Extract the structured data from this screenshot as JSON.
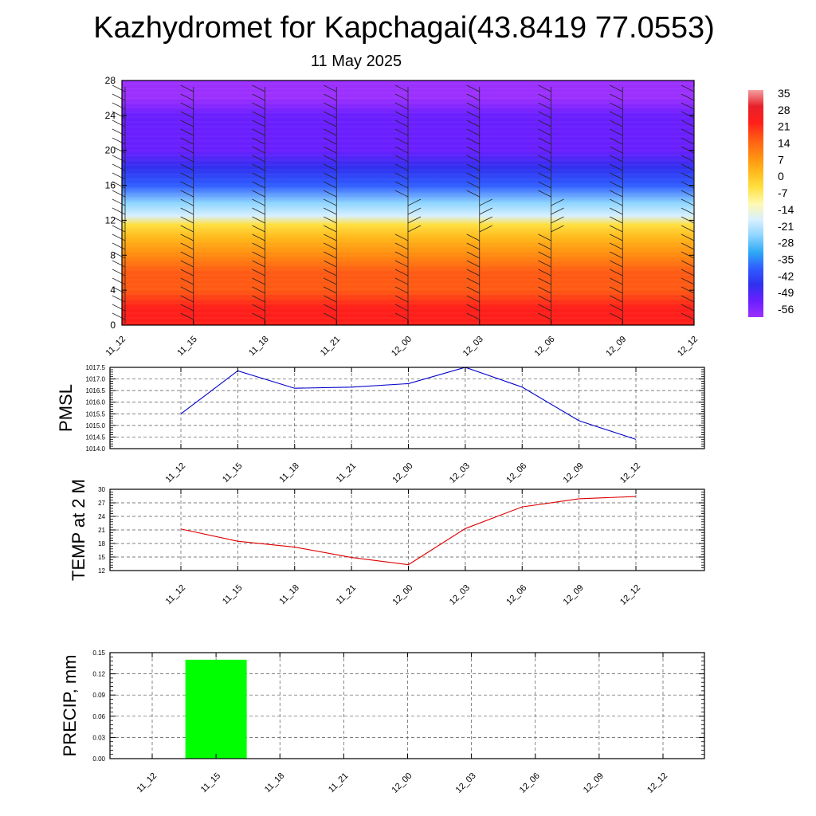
{
  "title": "Kazhydromet for Kapchagai(43.8419 77.0553)",
  "subtitle": "11 May 2025",
  "colorbar": {
    "labels": [
      "35",
      "28",
      "21",
      "14",
      "7",
      "0",
      "-7",
      "-14",
      "-21",
      "-28",
      "-35",
      "-42",
      "-49",
      "-56"
    ],
    "colors": [
      "#f2a0a0",
      "#e8202a",
      "#ff1f1a",
      "#ff5a14",
      "#ff8a10",
      "#ffb81a",
      "#ffe040",
      "#fff9b0",
      "#d8f0ff",
      "#8cd4ff",
      "#2ea8f5",
      "#2f5cff",
      "#3030ee",
      "#6a1fff",
      "#9b30ff"
    ]
  },
  "chart_data": [
    {
      "type": "heatmap",
      "name": "vertical-profile",
      "x_categories": [
        "11_12",
        "11_15",
        "11_18",
        "11_21",
        "12_00",
        "12_03",
        "12_06",
        "12_09",
        "12_12"
      ],
      "ylim": [
        0,
        28
      ],
      "yticks": [
        "0",
        "4",
        "8",
        "12",
        "16",
        "20",
        "24",
        "28"
      ],
      "color_by_height": [
        {
          "y": 0,
          "value": 28
        },
        {
          "y": 2,
          "value": 26
        },
        {
          "y": 4,
          "value": 21
        },
        {
          "y": 6,
          "value": 17
        },
        {
          "y": 8,
          "value": 12
        },
        {
          "y": 10,
          "value": 6
        },
        {
          "y": 11.5,
          "value": 0
        },
        {
          "y": 12.5,
          "value": -14
        },
        {
          "y": 14,
          "value": -24
        },
        {
          "y": 16,
          "value": -35
        },
        {
          "y": 18,
          "value": -45
        },
        {
          "y": 20,
          "value": -52
        },
        {
          "y": 22,
          "value": -49
        },
        {
          "y": 24,
          "value": -55
        },
        {
          "y": 26,
          "value": -58
        },
        {
          "y": 28,
          "value": -58
        }
      ]
    },
    {
      "type": "line",
      "name": "pmsl",
      "ylabel": "PMSL",
      "x": [
        "11_12",
        "11_15",
        "11_18",
        "11_21",
        "12_00",
        "12_03",
        "12_06",
        "12_09",
        "12_12"
      ],
      "values": [
        1015.5,
        1017.35,
        1016.6,
        1016.65,
        1016.8,
        1017.5,
        1016.65,
        1015.2,
        1014.4
      ],
      "ylim": [
        1014.0,
        1017.5
      ],
      "yticks": [
        "1014.0",
        "1014.5",
        "1015.0",
        "1015.5",
        "1016.0",
        "1016.5",
        "1017.0",
        "1017.5"
      ],
      "color": "#0000cc"
    },
    {
      "type": "line",
      "name": "temp",
      "ylabel": "TEMP at 2 M",
      "x": [
        "11_12",
        "11_15",
        "11_18",
        "11_21",
        "12_00",
        "12_03",
        "12_06",
        "12_09",
        "12_12"
      ],
      "values": [
        21.2,
        18.5,
        17.2,
        14.9,
        13.3,
        21.3,
        26.1,
        27.9,
        28.4
      ],
      "ylim": [
        12,
        30
      ],
      "yticks": [
        "12",
        "15",
        "18",
        "21",
        "24",
        "27",
        "30"
      ],
      "color": "#dd0000"
    },
    {
      "type": "bar",
      "name": "precip",
      "ylabel": "PRECIP, mm",
      "categories": [
        "11_12",
        "11_15",
        "11_18",
        "11_21",
        "12_00",
        "12_03",
        "12_06",
        "12_09",
        "12_12"
      ],
      "values": [
        0,
        0.14,
        0,
        0,
        0,
        0,
        0,
        0,
        0
      ],
      "ylim": [
        0,
        0.15
      ],
      "yticks": [
        "0.00",
        "0.03",
        "0.06",
        "0.09",
        "0.12",
        "0.15"
      ],
      "color": "#00ff00"
    }
  ]
}
